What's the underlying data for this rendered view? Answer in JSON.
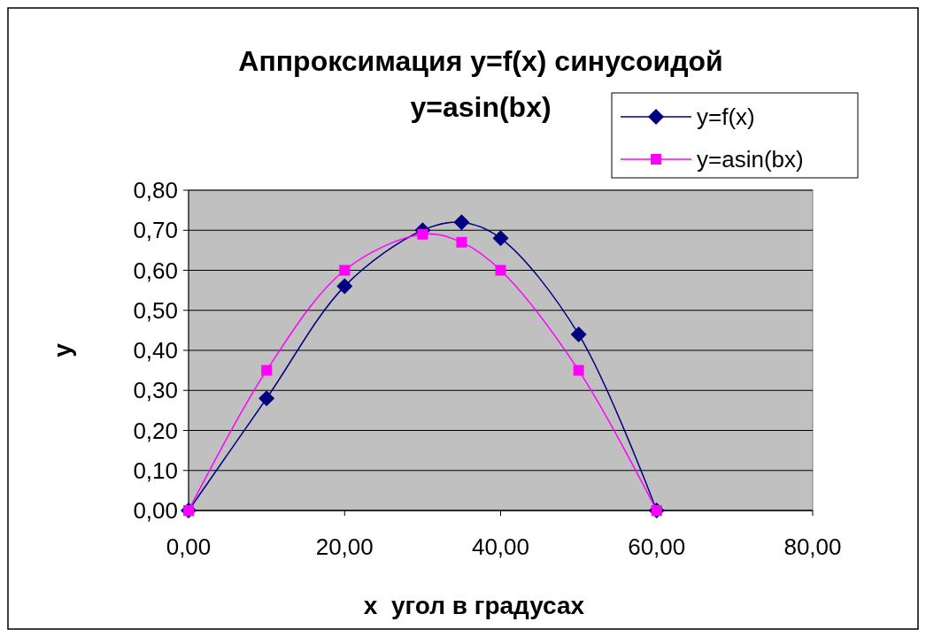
{
  "chart_data": {
    "type": "line",
    "title": "Аппроксимация y=f(x) синусоидой y=asin(bx)",
    "xlabel": "x  угол в градусах",
    "ylabel": "y",
    "x": [
      0,
      10,
      20,
      30,
      35,
      40,
      50,
      60
    ],
    "series": [
      {
        "name": "y=f(x)",
        "color": "#000080",
        "marker": "diamond",
        "values": [
          0,
          0.28,
          0.56,
          0.7,
          0.72,
          0.68,
          0.44,
          0
        ]
      },
      {
        "name": "y=asin(bx)",
        "color": "#ff00ff",
        "marker": "square",
        "values": [
          0,
          0.35,
          0.6,
          0.69,
          0.67,
          0.6,
          0.35,
          0
        ]
      }
    ],
    "xlim": [
      0,
      80
    ],
    "xticks": [
      {
        "value": 0,
        "label": "0,00"
      },
      {
        "value": 20,
        "label": "20,00"
      },
      {
        "value": 40,
        "label": "40,00"
      },
      {
        "value": 60,
        "label": "60,00"
      },
      {
        "value": 80,
        "label": "80,00"
      }
    ],
    "ylim": [
      0,
      0.8
    ],
    "yticks": [
      {
        "value": 0,
        "label": "0,00"
      },
      {
        "value": 0.1,
        "label": "0,10"
      },
      {
        "value": 0.2,
        "label": "0,20"
      },
      {
        "value": 0.3,
        "label": "0,30"
      },
      {
        "value": 0.4,
        "label": "0,40"
      },
      {
        "value": 0.5,
        "label": "0,50"
      },
      {
        "value": 0.6,
        "label": "0,60"
      },
      {
        "value": 0.7,
        "label": "0,70"
      },
      {
        "value": 0.8,
        "label": "0,80"
      }
    ],
    "grid": "y",
    "legend": "top right",
    "line_style": "solid"
  }
}
